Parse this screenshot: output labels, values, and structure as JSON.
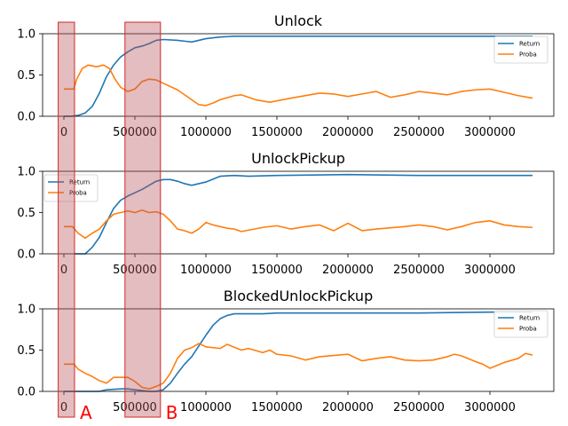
{
  "chart_data": [
    {
      "type": "line",
      "title": "Unlock",
      "xlabel": "",
      "ylabel": "",
      "xlim": [
        -150000,
        3450000
      ],
      "ylim": [
        0,
        1.0
      ],
      "xticks": [
        0,
        500000,
        1000000,
        1500000,
        2000000,
        2500000,
        3000000
      ],
      "xtick_labels": [
        "0",
        "500000",
        "1000000",
        "1500000",
        "2000000",
        "2500000",
        "3000000"
      ],
      "yticks": [
        0,
        0.5,
        1.0
      ],
      "ytick_labels": [
        "0.0",
        "0.5",
        "1.0"
      ],
      "legend_position": "top-right",
      "series": [
        {
          "name": "Return",
          "color": "#1f77b4",
          "points": [
            [
              0,
              0.0
            ],
            [
              50000,
              0.0
            ],
            [
              100000,
              0.01
            ],
            [
              150000,
              0.04
            ],
            [
              200000,
              0.12
            ],
            [
              250000,
              0.28
            ],
            [
              300000,
              0.48
            ],
            [
              350000,
              0.62
            ],
            [
              400000,
              0.72
            ],
            [
              450000,
              0.78
            ],
            [
              500000,
              0.83
            ],
            [
              550000,
              0.85
            ],
            [
              600000,
              0.88
            ],
            [
              650000,
              0.92
            ],
            [
              700000,
              0.93
            ],
            [
              800000,
              0.92
            ],
            [
              850000,
              0.91
            ],
            [
              900000,
              0.9
            ],
            [
              950000,
              0.92
            ],
            [
              1000000,
              0.94
            ],
            [
              1100000,
              0.96
            ],
            [
              1200000,
              0.97
            ],
            [
              1500000,
              0.97
            ],
            [
              2000000,
              0.97
            ],
            [
              2500000,
              0.97
            ],
            [
              3000000,
              0.97
            ],
            [
              3300000,
              0.97
            ]
          ]
        },
        {
          "name": "Proba",
          "color": "#ff7f0e",
          "points": [
            [
              0,
              0.33
            ],
            [
              70000,
              0.33
            ],
            [
              90000,
              0.45
            ],
            [
              130000,
              0.58
            ],
            [
              170000,
              0.62
            ],
            [
              230000,
              0.6
            ],
            [
              280000,
              0.62
            ],
            [
              320000,
              0.58
            ],
            [
              360000,
              0.45
            ],
            [
              400000,
              0.35
            ],
            [
              450000,
              0.3
            ],
            [
              500000,
              0.33
            ],
            [
              550000,
              0.42
            ],
            [
              600000,
              0.45
            ],
            [
              650000,
              0.44
            ],
            [
              700000,
              0.4
            ],
            [
              800000,
              0.32
            ],
            [
              900000,
              0.2
            ],
            [
              950000,
              0.14
            ],
            [
              1000000,
              0.13
            ],
            [
              1050000,
              0.16
            ],
            [
              1100000,
              0.2
            ],
            [
              1200000,
              0.25
            ],
            [
              1250000,
              0.26
            ],
            [
              1350000,
              0.2
            ],
            [
              1450000,
              0.17
            ],
            [
              1600000,
              0.22
            ],
            [
              1800000,
              0.28
            ],
            [
              1900000,
              0.27
            ],
            [
              2000000,
              0.24
            ],
            [
              2100000,
              0.27
            ],
            [
              2200000,
              0.3
            ],
            [
              2300000,
              0.23
            ],
            [
              2400000,
              0.26
            ],
            [
              2500000,
              0.3
            ],
            [
              2600000,
              0.28
            ],
            [
              2700000,
              0.26
            ],
            [
              2800000,
              0.3
            ],
            [
              2900000,
              0.32
            ],
            [
              3000000,
              0.33
            ],
            [
              3100000,
              0.29
            ],
            [
              3200000,
              0.25
            ],
            [
              3300000,
              0.22
            ]
          ]
        }
      ]
    },
    {
      "type": "line",
      "title": "UnlockPickup",
      "xlabel": "",
      "ylabel": "",
      "xlim": [
        -150000,
        3450000
      ],
      "ylim": [
        0,
        1.0
      ],
      "xticks": [
        0,
        500000,
        1000000,
        1500000,
        2000000,
        2500000,
        3000000
      ],
      "xtick_labels": [
        "0",
        "500000",
        "1000000",
        "1500000",
        "2000000",
        "2500000",
        "3000000"
      ],
      "yticks": [
        0,
        0.5,
        1.0
      ],
      "ytick_labels": [
        "0.0",
        "0.5",
        "1.0"
      ],
      "legend_position": "top-left",
      "series": [
        {
          "name": "Return",
          "color": "#1f77b4",
          "points": [
            [
              70000,
              0.0
            ],
            [
              150000,
              0.0
            ],
            [
              200000,
              0.08
            ],
            [
              250000,
              0.2
            ],
            [
              300000,
              0.38
            ],
            [
              350000,
              0.55
            ],
            [
              400000,
              0.65
            ],
            [
              450000,
              0.7
            ],
            [
              500000,
              0.74
            ],
            [
              550000,
              0.78
            ],
            [
              600000,
              0.83
            ],
            [
              650000,
              0.88
            ],
            [
              700000,
              0.9
            ],
            [
              750000,
              0.9
            ],
            [
              800000,
              0.88
            ],
            [
              850000,
              0.85
            ],
            [
              900000,
              0.83
            ],
            [
              950000,
              0.85
            ],
            [
              1000000,
              0.87
            ],
            [
              1100000,
              0.94
            ],
            [
              1200000,
              0.95
            ],
            [
              1300000,
              0.94
            ],
            [
              1500000,
              0.95
            ],
            [
              2000000,
              0.96
            ],
            [
              2500000,
              0.95
            ],
            [
              3000000,
              0.95
            ],
            [
              3300000,
              0.95
            ]
          ]
        },
        {
          "name": "Proba",
          "color": "#ff7f0e",
          "points": [
            [
              0,
              0.33
            ],
            [
              60000,
              0.33
            ],
            [
              100000,
              0.25
            ],
            [
              150000,
              0.19
            ],
            [
              200000,
              0.25
            ],
            [
              250000,
              0.3
            ],
            [
              300000,
              0.4
            ],
            [
              350000,
              0.48
            ],
            [
              400000,
              0.5
            ],
            [
              450000,
              0.52
            ],
            [
              500000,
              0.5
            ],
            [
              550000,
              0.53
            ],
            [
              600000,
              0.5
            ],
            [
              650000,
              0.51
            ],
            [
              700000,
              0.48
            ],
            [
              750000,
              0.4
            ],
            [
              800000,
              0.3
            ],
            [
              850000,
              0.28
            ],
            [
              900000,
              0.25
            ],
            [
              950000,
              0.3
            ],
            [
              1000000,
              0.38
            ],
            [
              1050000,
              0.35
            ],
            [
              1100000,
              0.33
            ],
            [
              1150000,
              0.31
            ],
            [
              1200000,
              0.3
            ],
            [
              1250000,
              0.27
            ],
            [
              1400000,
              0.32
            ],
            [
              1500000,
              0.34
            ],
            [
              1600000,
              0.3
            ],
            [
              1700000,
              0.33
            ],
            [
              1800000,
              0.35
            ],
            [
              1900000,
              0.28
            ],
            [
              2000000,
              0.37
            ],
            [
              2100000,
              0.28
            ],
            [
              2200000,
              0.3
            ],
            [
              2400000,
              0.33
            ],
            [
              2500000,
              0.35
            ],
            [
              2600000,
              0.33
            ],
            [
              2700000,
              0.29
            ],
            [
              2800000,
              0.33
            ],
            [
              2900000,
              0.38
            ],
            [
              3000000,
              0.4
            ],
            [
              3100000,
              0.35
            ],
            [
              3200000,
              0.33
            ],
            [
              3300000,
              0.32
            ]
          ]
        }
      ]
    },
    {
      "type": "line",
      "title": "BlockedUnlockPickup",
      "xlabel": "",
      "ylabel": "",
      "xlim": [
        -150000,
        3450000
      ],
      "ylim": [
        0,
        1.0
      ],
      "xticks": [
        0,
        500000,
        1000000,
        1500000,
        2000000,
        2500000,
        3000000
      ],
      "xtick_labels": [
        "0",
        "500000",
        "1000000",
        "1500000",
        "2000000",
        "2500000",
        "3000000"
      ],
      "yticks": [
        0,
        0.5,
        1.0
      ],
      "ytick_labels": [
        "0.0",
        "0.5",
        "1.0"
      ],
      "legend_position": "top-right",
      "series": [
        {
          "name": "Return",
          "color": "#1f77b4",
          "points": [
            [
              0,
              0.0
            ],
            [
              150000,
              0.0
            ],
            [
              250000,
              0.0
            ],
            [
              300000,
              0.02
            ],
            [
              400000,
              0.03
            ],
            [
              450000,
              0.03
            ],
            [
              500000,
              0.02
            ],
            [
              550000,
              0.01
            ],
            [
              600000,
              0.0
            ],
            [
              650000,
              0.0
            ],
            [
              700000,
              0.02
            ],
            [
              750000,
              0.1
            ],
            [
              800000,
              0.22
            ],
            [
              850000,
              0.33
            ],
            [
              900000,
              0.42
            ],
            [
              950000,
              0.55
            ],
            [
              1000000,
              0.68
            ],
            [
              1050000,
              0.8
            ],
            [
              1100000,
              0.88
            ],
            [
              1150000,
              0.92
            ],
            [
              1200000,
              0.94
            ],
            [
              1300000,
              0.94
            ],
            [
              1400000,
              0.94
            ],
            [
              1500000,
              0.95
            ],
            [
              1600000,
              0.95
            ],
            [
              2000000,
              0.95
            ],
            [
              2500000,
              0.95
            ],
            [
              3000000,
              0.96
            ],
            [
              3300000,
              0.96
            ]
          ]
        },
        {
          "name": "Proba",
          "color": "#ff7f0e",
          "points": [
            [
              0,
              0.33
            ],
            [
              70000,
              0.33
            ],
            [
              100000,
              0.27
            ],
            [
              150000,
              0.22
            ],
            [
              200000,
              0.18
            ],
            [
              250000,
              0.13
            ],
            [
              300000,
              0.1
            ],
            [
              350000,
              0.17
            ],
            [
              400000,
              0.17
            ],
            [
              450000,
              0.17
            ],
            [
              500000,
              0.12
            ],
            [
              550000,
              0.05
            ],
            [
              600000,
              0.03
            ],
            [
              650000,
              0.06
            ],
            [
              700000,
              0.1
            ],
            [
              750000,
              0.22
            ],
            [
              800000,
              0.4
            ],
            [
              850000,
              0.5
            ],
            [
              900000,
              0.53
            ],
            [
              950000,
              0.58
            ],
            [
              1000000,
              0.54
            ],
            [
              1100000,
              0.52
            ],
            [
              1150000,
              0.57
            ],
            [
              1250000,
              0.5
            ],
            [
              1300000,
              0.52
            ],
            [
              1400000,
              0.47
            ],
            [
              1450000,
              0.5
            ],
            [
              1500000,
              0.45
            ],
            [
              1600000,
              0.43
            ],
            [
              1700000,
              0.38
            ],
            [
              1800000,
              0.42
            ],
            [
              2000000,
              0.45
            ],
            [
              2100000,
              0.37
            ],
            [
              2200000,
              0.4
            ],
            [
              2300000,
              0.42
            ],
            [
              2400000,
              0.38
            ],
            [
              2500000,
              0.37
            ],
            [
              2600000,
              0.38
            ],
            [
              2700000,
              0.42
            ],
            [
              2750000,
              0.45
            ],
            [
              2800000,
              0.43
            ],
            [
              2900000,
              0.36
            ],
            [
              2950000,
              0.33
            ],
            [
              3000000,
              0.28
            ],
            [
              3100000,
              0.35
            ],
            [
              3200000,
              0.4
            ],
            [
              3250000,
              0.46
            ],
            [
              3300000,
              0.44
            ]
          ]
        }
      ]
    }
  ],
  "highlight_regions": [
    {
      "label": "A",
      "x_start": -40000,
      "x_end": 75000,
      "color": "#b55256"
    },
    {
      "label": "B",
      "x_start": 430000,
      "x_end": 680000,
      "color": "#b55256"
    }
  ],
  "legend": {
    "series_names": [
      "Return",
      "Proba"
    ]
  }
}
